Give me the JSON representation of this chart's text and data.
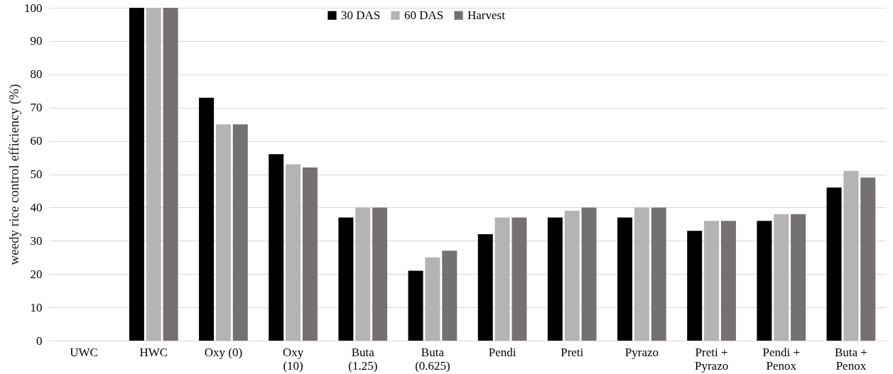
{
  "chart_data": {
    "type": "bar",
    "ylabel": "weedy rice control efficiency (%)",
    "categories": [
      "UWC",
      "HWC",
      "Oxy (0)",
      "Oxy\n(10)",
      "Buta\n(1.25)",
      "Buta\n(0.625)",
      "Pendi",
      "Preti",
      "Pyrazo",
      "Preti +\nPyrazo",
      "Pendi +\nPenox",
      "Buta +\nPenox"
    ],
    "series": [
      {
        "name": "30 DAS",
        "color": "#000000",
        "values": [
          0,
          100,
          73,
          56,
          37,
          21,
          32,
          37,
          37,
          33,
          36,
          46
        ]
      },
      {
        "name": "60 DAS",
        "color": "#b4b4b4",
        "values": [
          0,
          100,
          65,
          53,
          40,
          25,
          37,
          39,
          40,
          36,
          38,
          51
        ]
      },
      {
        "name": "Harvest",
        "color": "#767171",
        "values": [
          0,
          100,
          65,
          52,
          40,
          27,
          37,
          40,
          40,
          36,
          38,
          49
        ]
      }
    ],
    "ylim": [
      0,
      100
    ],
    "yticks": [
      0,
      10,
      20,
      30,
      40,
      50,
      60,
      70,
      80,
      90,
      100
    ],
    "grid": "y",
    "legend": "top"
  }
}
